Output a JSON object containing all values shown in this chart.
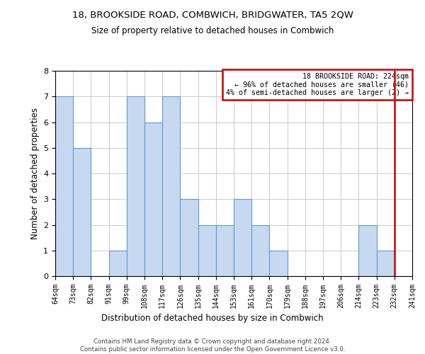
{
  "title": "18, BROOKSIDE ROAD, COMBWICH, BRIDGWATER, TA5 2QW",
  "subtitle": "Size of property relative to detached houses in Combwich",
  "xlabel": "Distribution of detached houses by size in Combwich",
  "ylabel": "Number of detached properties",
  "bar_labels": [
    "64sqm",
    "73sqm",
    "82sqm",
    "91sqm",
    "99sqm",
    "108sqm",
    "117sqm",
    "126sqm",
    "135sqm",
    "144sqm",
    "153sqm",
    "161sqm",
    "170sqm",
    "179sqm",
    "188sqm",
    "197sqm",
    "206sqm",
    "214sqm",
    "223sqm",
    "232sqm",
    "241sqm"
  ],
  "bar_values": [
    7,
    5,
    0,
    1,
    7,
    6,
    7,
    3,
    2,
    2,
    3,
    2,
    1,
    0,
    0,
    0,
    0,
    2,
    1,
    0
  ],
  "bar_color": "#c6d9f0",
  "bar_edge_color": "#5b9bd5",
  "ylim": [
    0,
    8
  ],
  "yticks": [
    0,
    1,
    2,
    3,
    4,
    5,
    6,
    7,
    8
  ],
  "annotation_text_line1": "18 BROOKSIDE ROAD: 224sqm",
  "annotation_text_line2": "← 96% of detached houses are smaller (46)",
  "annotation_text_line3": "4% of semi-detached houses are larger (2) →",
  "property_line_color": "#cc0000",
  "footer_line1": "Contains HM Land Registry data © Crown copyright and database right 2024.",
  "footer_line2": "Contains public sector information licensed under the Open Government Licence v3.0.",
  "background_color": "#ffffff",
  "grid_color": "#cccccc"
}
